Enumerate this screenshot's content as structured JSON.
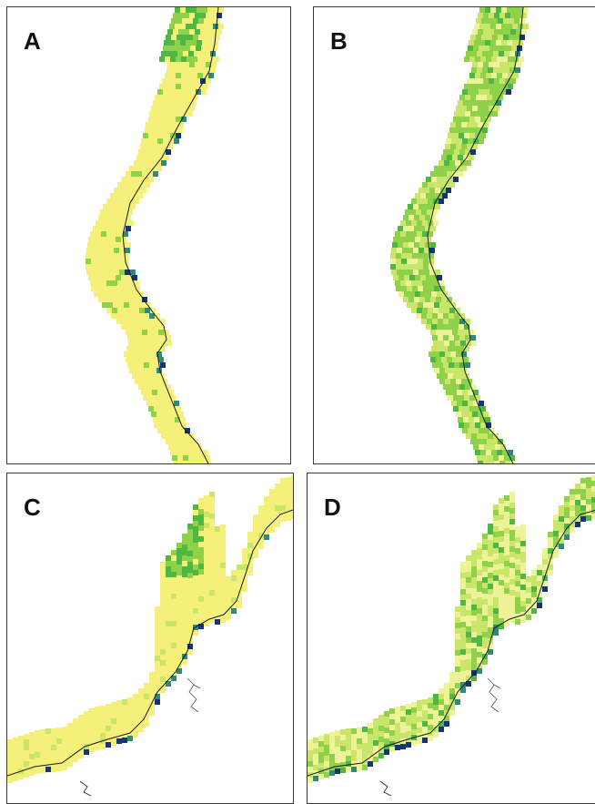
{
  "panels": [
    {
      "id": "A",
      "label": "A"
    },
    {
      "id": "B",
      "label": "B"
    },
    {
      "id": "C",
      "label": "C"
    },
    {
      "id": "D",
      "label": "D"
    }
  ],
  "colors": {
    "background": "#ffffff",
    "frame": "#3a3a3a",
    "coastline": "#1a1a1a",
    "low_yellow": "#f5f07a",
    "pale_yellow": "#eef39a",
    "light_green": "#c9e66a",
    "green": "#8fd24a",
    "dark_green": "#4fb842",
    "teal": "#2f8a7a",
    "navy": "#14357a"
  }
}
